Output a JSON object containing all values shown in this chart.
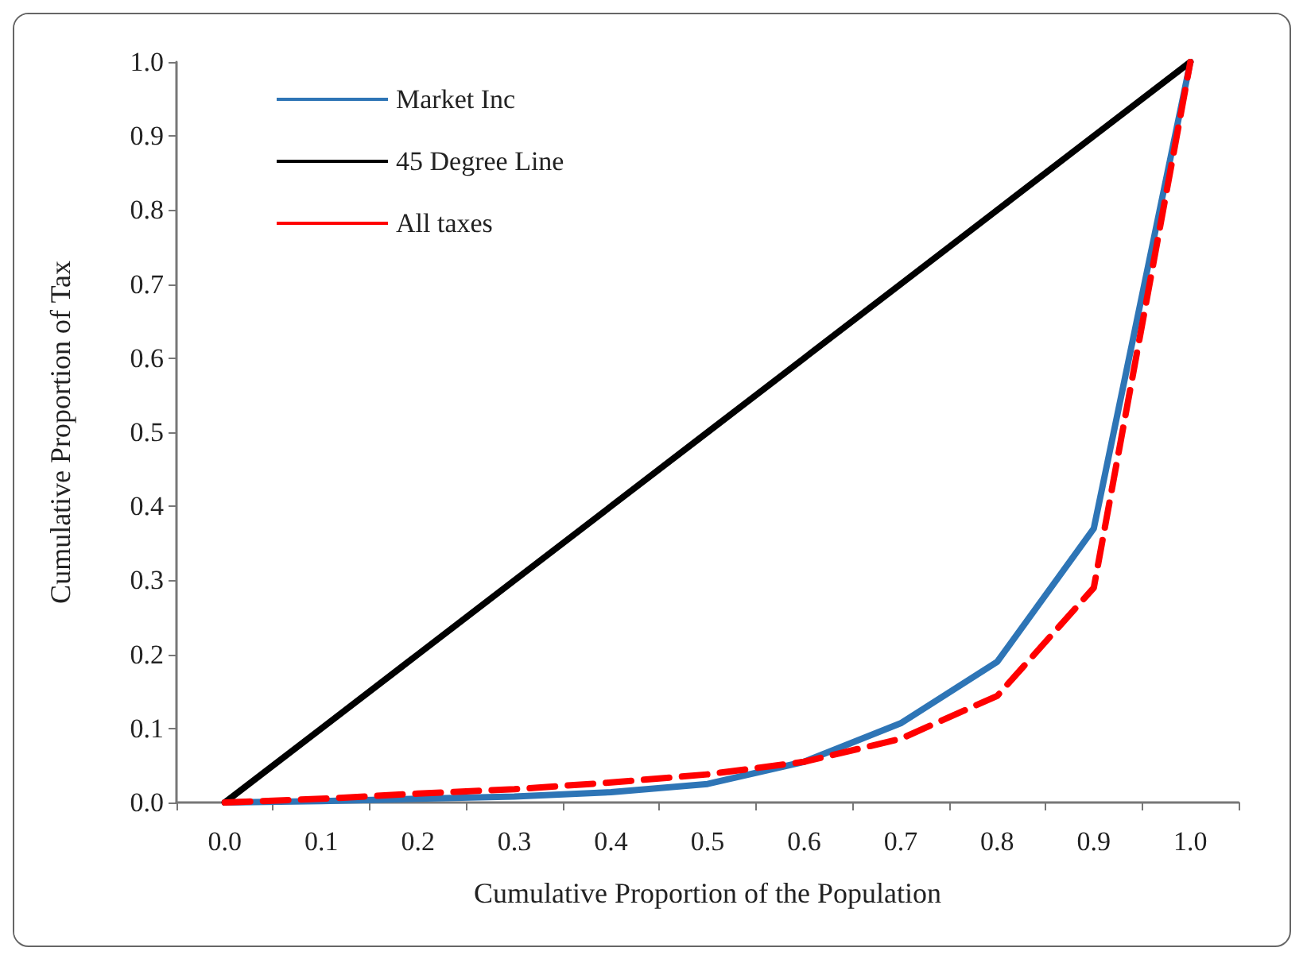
{
  "chart_data": {
    "type": "line",
    "xlabel": "Cumulative Proportion of the Population",
    "ylabel": "Cumulative Proportion of Tax",
    "categories": [
      "0.0",
      "0.1",
      "0.2",
      "0.3",
      "0.4",
      "0.5",
      "0.6",
      "0.7",
      "0.8",
      "0.9",
      "1.0"
    ],
    "series": [
      {
        "name": "Market Inc",
        "color": "#2e75b6",
        "line_style": "solid",
        "values": [
          0,
          0.002,
          0.005,
          0.008,
          0.014,
          0.025,
          0.055,
          0.107,
          0.19,
          0.37,
          1
        ]
      },
      {
        "name": "45 Degree Line",
        "color": "#000000",
        "line_style": "solid",
        "values": [
          0,
          0.1,
          0.2,
          0.3,
          0.4,
          0.5,
          0.6,
          0.7,
          0.8,
          0.9,
          1
        ]
      },
      {
        "name": "All taxes",
        "color": "#ff0000",
        "line_style": "dashed",
        "values": [
          0,
          0.005,
          0.012,
          0.018,
          0.027,
          0.038,
          0.055,
          0.086,
          0.144,
          0.29,
          1
        ]
      }
    ],
    "ylim": [
      0,
      1
    ],
    "yticks": [
      {
        "value": 0,
        "label": "0.0"
      },
      0.1,
      0.2,
      0.3,
      0.4,
      0.5,
      0.6,
      0.7,
      0.8,
      0.9,
      {
        "value": 1,
        "label": "1.0"
      }
    ],
    "grid": false,
    "legend": "top left",
    "marker": "none"
  }
}
